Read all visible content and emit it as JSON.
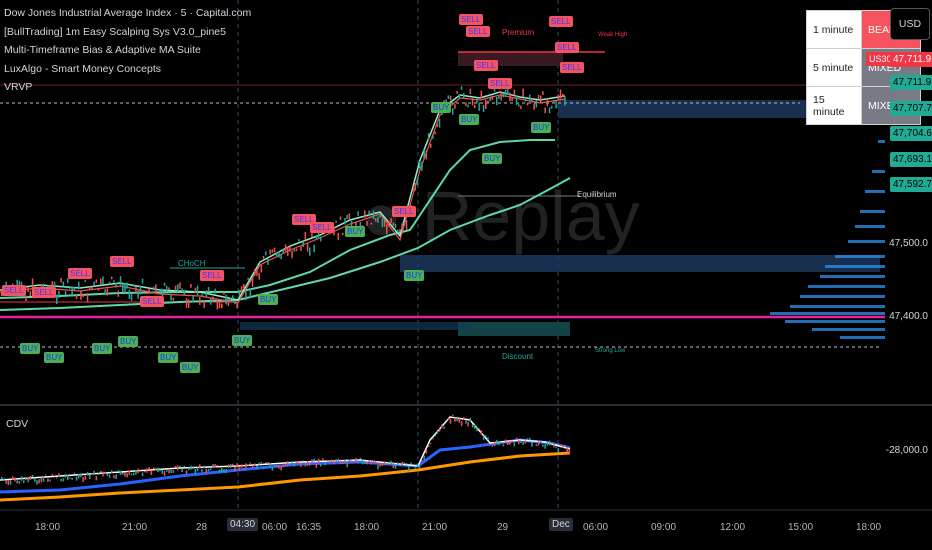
{
  "legend": {
    "lines": [
      "Dow Jones Industrial Average Index · 5 · Capital.com",
      "[BullTrading] 1m Easy Scalping Sys V3.0_pine5",
      "Multi-Timeframe Bias & Adaptive MA Suite",
      "LuxAlgo - Smart Money Concepts",
      "VRVP"
    ]
  },
  "bias_table": [
    {
      "timeframe": "1 minute",
      "bias": "BEARISH",
      "color": "#f7525f"
    },
    {
      "timeframe": "5 minute",
      "bias": "MIXED",
      "color": "#787b86"
    },
    {
      "timeframe": "15 minute",
      "bias": "MIXED",
      "color": "#787b86"
    }
  ],
  "currency_button": "USD",
  "symbol_tag": "US30",
  "price_tags": [
    {
      "value": "47,711.9",
      "color": "#f23645"
    },
    {
      "value": "47,711.9",
      "color": "#22ab94"
    },
    {
      "value": "47,707.7",
      "color": "#22ab94"
    },
    {
      "value": "47,704.6",
      "color": "#22ab94"
    },
    {
      "value": "47,693.1",
      "color": "#22ab94"
    },
    {
      "value": "47,592.7",
      "color": "#22ab94"
    }
  ],
  "price_axis": [
    "47,500.0",
    "47,400.0"
  ],
  "cdv_axis": "-28,000.0",
  "cdv_label": "CDV",
  "time_axis": [
    "18:00",
    "21:00",
    "28",
    "04:30",
    "06:00",
    "16:35",
    "18:00",
    "21:00",
    "29",
    "Dec",
    "06:00",
    "09:00",
    "12:00",
    "15:00",
    "18:00"
  ],
  "smc_labels": {
    "premium": "Premium",
    "weak_high": "Weak High",
    "equilibrium": "Equilibrium",
    "discount": "Discount",
    "strong_low": "Strong Low",
    "choch": "CHoCH"
  },
  "signals": {
    "sell": "SELL",
    "buy": "BUY"
  },
  "watermark": "Replay",
  "colors": {
    "bull_candle": "#26a69a",
    "bear_candle": "#ef5350",
    "ma_fast": "#5fd9a7",
    "supply_zone": "#1d3a63",
    "magenta_line": "#e91ea5",
    "cdv_blue": "#2962ff",
    "cdv_orange": "#ff9800"
  }
}
